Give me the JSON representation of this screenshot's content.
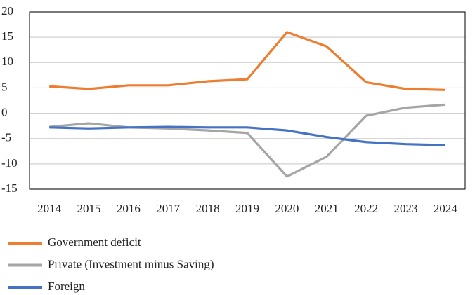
{
  "chart_data": {
    "type": "line",
    "categories": [
      "2014",
      "2015",
      "2016",
      "2017",
      "2018",
      "2019",
      "2020",
      "2021",
      "2022",
      "2023",
      "2024"
    ],
    "series": [
      {
        "name": "Government deficit",
        "color": "#ed7d31",
        "values": [
          5.3,
          4.8,
          5.5,
          5.5,
          6.3,
          6.7,
          16.0,
          13.2,
          6.1,
          4.8,
          4.6
        ]
      },
      {
        "name": "Private (Investment minus Saving)",
        "color": "#a5a5a5",
        "values": [
          -2.7,
          -2.0,
          -2.8,
          -3.0,
          -3.4,
          -3.9,
          -12.5,
          -8.6,
          -0.5,
          1.1,
          1.7
        ]
      },
      {
        "name": "Foreign",
        "color": "#4472c4",
        "values": [
          -2.8,
          -3.0,
          -2.8,
          -2.7,
          -2.8,
          -2.8,
          -3.4,
          -4.7,
          -5.7,
          -6.1,
          -6.3
        ]
      }
    ],
    "ylim": [
      -15,
      20
    ],
    "yticks": [
      -15,
      -10,
      -5,
      0,
      5,
      10,
      15,
      20
    ],
    "grid": true,
    "legend": "bottom"
  }
}
